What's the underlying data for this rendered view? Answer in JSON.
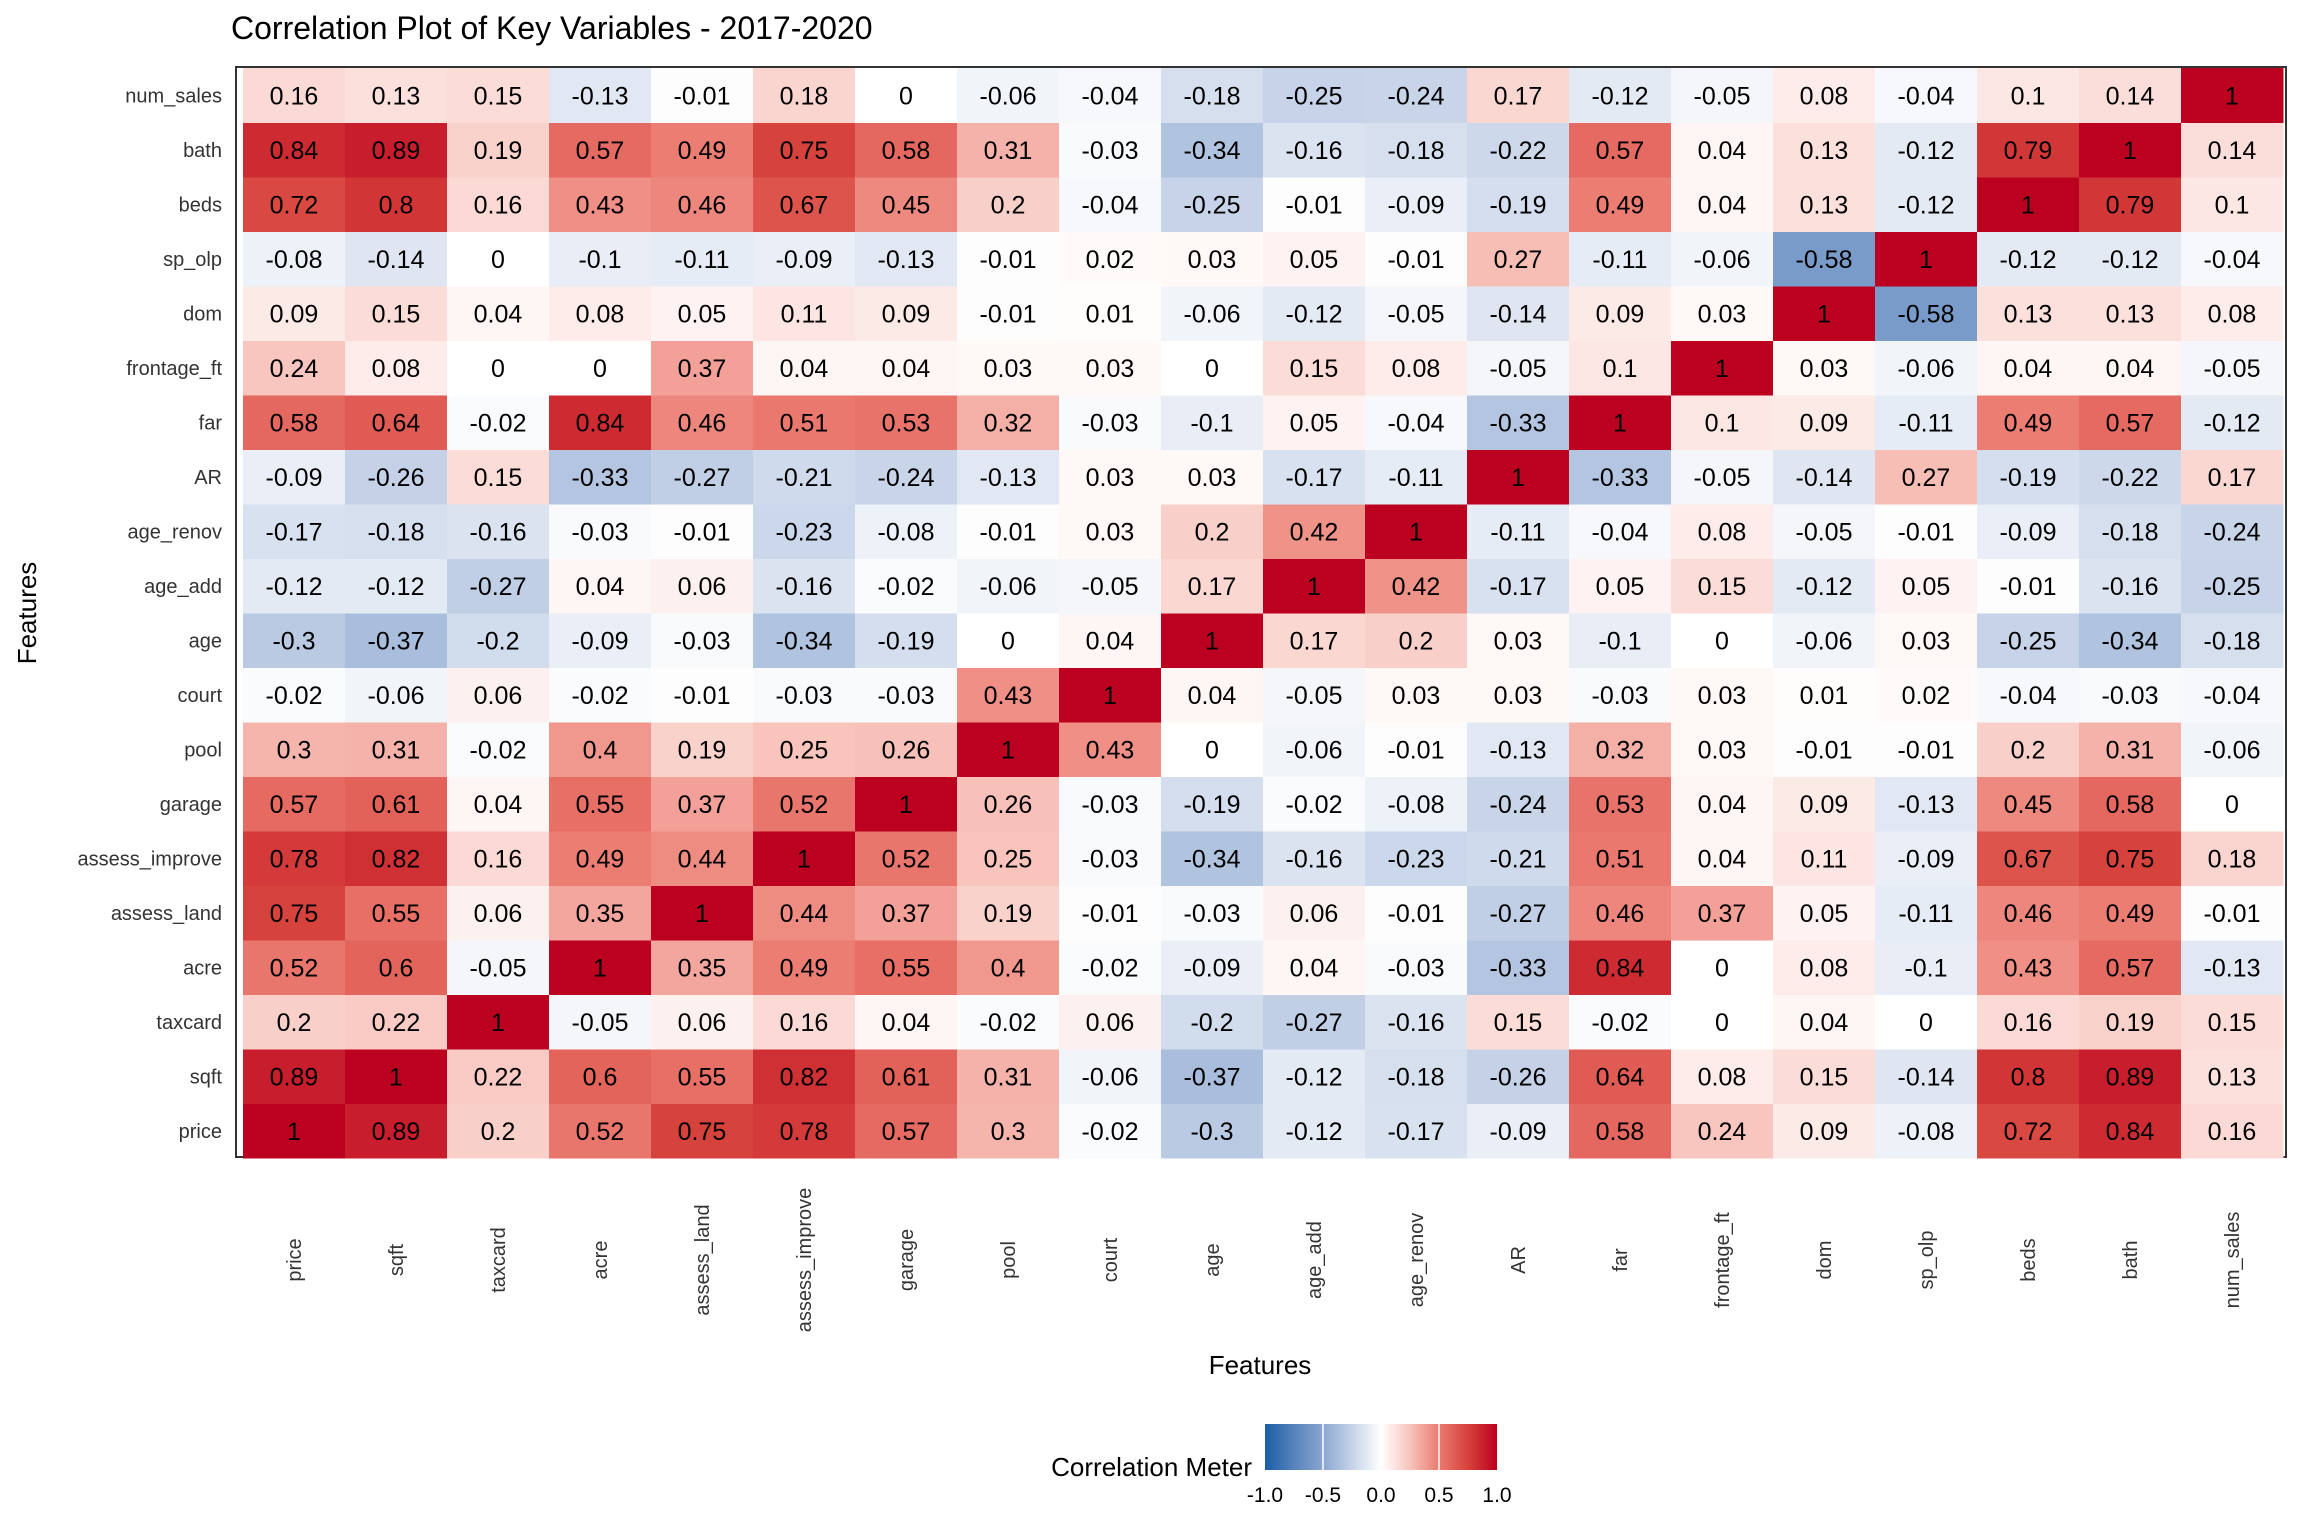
{
  "chart_data": {
    "type": "heatmap",
    "title": "Correlation Plot of Key Variables - 2017-2020",
    "xlabel": "Features",
    "ylabel": "Features",
    "variables": [
      "price",
      "sqft",
      "taxcard",
      "acre",
      "assess_land",
      "assess_improve",
      "garage",
      "pool",
      "court",
      "age",
      "age_add",
      "age_renov",
      "AR",
      "far",
      "frontage_ft",
      "dom",
      "sp_olp",
      "beds",
      "bath",
      "num_sales"
    ],
    "matrix": [
      [
        1,
        0.89,
        0.2,
        0.52,
        0.75,
        0.78,
        0.57,
        0.3,
        -0.02,
        -0.3,
        -0.12,
        -0.17,
        -0.09,
        0.58,
        0.24,
        0.09,
        -0.08,
        0.72,
        0.84,
        0.16
      ],
      [
        0.89,
        1,
        0.22,
        0.6,
        0.55,
        0.82,
        0.61,
        0.31,
        -0.06,
        -0.37,
        -0.12,
        -0.18,
        -0.26,
        0.64,
        0.08,
        0.15,
        -0.14,
        0.8,
        0.89,
        0.13
      ],
      [
        0.2,
        0.22,
        1,
        -0.05,
        0.06,
        0.16,
        0.04,
        -0.02,
        0.06,
        -0.2,
        -0.27,
        -0.16,
        0.15,
        -0.02,
        0,
        0.04,
        0,
        0.16,
        0.19,
        0.15
      ],
      [
        0.52,
        0.6,
        -0.05,
        1,
        0.35,
        0.49,
        0.55,
        0.4,
        -0.02,
        -0.09,
        0.04,
        -0.03,
        -0.33,
        0.84,
        0,
        0.08,
        -0.1,
        0.43,
        0.57,
        -0.13
      ],
      [
        0.75,
        0.55,
        0.06,
        0.35,
        1,
        0.44,
        0.37,
        0.19,
        -0.01,
        -0.03,
        0.06,
        -0.01,
        -0.27,
        0.46,
        0.37,
        0.05,
        -0.11,
        0.46,
        0.49,
        -0.01
      ],
      [
        0.78,
        0.82,
        0.16,
        0.49,
        0.44,
        1,
        0.52,
        0.25,
        -0.03,
        -0.34,
        -0.16,
        -0.23,
        -0.21,
        0.51,
        0.04,
        0.11,
        -0.09,
        0.67,
        0.75,
        0.18
      ],
      [
        0.57,
        0.61,
        0.04,
        0.55,
        0.37,
        0.52,
        1,
        0.26,
        -0.03,
        -0.19,
        -0.02,
        -0.08,
        -0.24,
        0.53,
        0.04,
        0.09,
        -0.13,
        0.45,
        0.58,
        0
      ],
      [
        0.3,
        0.31,
        -0.02,
        0.4,
        0.19,
        0.25,
        0.26,
        1,
        0.43,
        0,
        -0.06,
        -0.01,
        -0.13,
        0.32,
        0.03,
        -0.01,
        -0.01,
        0.2,
        0.31,
        -0.06
      ],
      [
        -0.02,
        -0.06,
        0.06,
        -0.02,
        -0.01,
        -0.03,
        -0.03,
        0.43,
        1,
        0.04,
        -0.05,
        0.03,
        0.03,
        -0.03,
        0.03,
        0.01,
        0.02,
        -0.04,
        -0.03,
        -0.04
      ],
      [
        -0.3,
        -0.37,
        -0.2,
        -0.09,
        -0.03,
        -0.34,
        -0.19,
        0,
        0.04,
        1,
        0.17,
        0.2,
        0.03,
        -0.1,
        0,
        -0.06,
        0.03,
        -0.25,
        -0.34,
        -0.18
      ],
      [
        -0.12,
        -0.12,
        -0.27,
        0.04,
        0.06,
        -0.16,
        -0.02,
        -0.06,
        -0.05,
        0.17,
        1,
        0.42,
        -0.17,
        0.05,
        0.15,
        -0.12,
        0.05,
        -0.01,
        -0.16,
        -0.25
      ],
      [
        -0.17,
        -0.18,
        -0.16,
        -0.03,
        -0.01,
        -0.23,
        -0.08,
        -0.01,
        0.03,
        0.2,
        0.42,
        1,
        -0.11,
        -0.04,
        0.08,
        -0.05,
        -0.01,
        -0.09,
        -0.18,
        -0.24
      ],
      [
        -0.09,
        -0.26,
        0.15,
        -0.33,
        -0.27,
        -0.21,
        -0.24,
        -0.13,
        0.03,
        0.03,
        -0.17,
        -0.11,
        1,
        -0.33,
        -0.05,
        -0.14,
        0.27,
        -0.19,
        -0.22,
        0.17
      ],
      [
        0.58,
        0.64,
        -0.02,
        0.84,
        0.46,
        0.51,
        0.53,
        0.32,
        -0.03,
        -0.1,
        0.05,
        -0.04,
        -0.33,
        1,
        0.1,
        0.09,
        -0.11,
        0.49,
        0.57,
        -0.12
      ],
      [
        0.24,
        0.08,
        0,
        0,
        0.37,
        0.04,
        0.04,
        0.03,
        0.03,
        0,
        0.15,
        0.08,
        -0.05,
        0.1,
        1,
        0.03,
        -0.06,
        0.04,
        0.04,
        -0.05
      ],
      [
        0.09,
        0.15,
        0.04,
        0.08,
        0.05,
        0.11,
        0.09,
        -0.01,
        0.01,
        -0.06,
        -0.12,
        -0.05,
        -0.14,
        0.09,
        0.03,
        1,
        -0.58,
        0.13,
        0.13,
        0.08
      ],
      [
        -0.08,
        -0.14,
        0,
        -0.1,
        -0.11,
        -0.09,
        -0.13,
        -0.01,
        0.02,
        0.03,
        0.05,
        -0.01,
        0.27,
        -0.11,
        -0.06,
        -0.58,
        1,
        -0.12,
        -0.12,
        -0.04
      ],
      [
        0.72,
        0.8,
        0.16,
        0.43,
        0.46,
        0.67,
        0.45,
        0.2,
        -0.04,
        -0.25,
        -0.01,
        -0.09,
        -0.19,
        0.49,
        0.04,
        0.13,
        -0.12,
        1,
        0.79,
        0.1
      ],
      [
        0.84,
        0.89,
        0.19,
        0.57,
        0.49,
        0.75,
        0.58,
        0.31,
        -0.03,
        -0.34,
        -0.16,
        -0.18,
        -0.22,
        0.57,
        0.04,
        0.13,
        -0.12,
        0.79,
        1,
        0.14
      ],
      [
        0.16,
        0.13,
        0.15,
        -0.13,
        -0.01,
        0.18,
        0,
        -0.06,
        -0.04,
        -0.18,
        -0.25,
        -0.24,
        0.17,
        -0.12,
        -0.05,
        0.08,
        -0.04,
        0.1,
        0.14,
        1
      ]
    ],
    "legend": {
      "title": "Correlation Meter",
      "position": "bottom",
      "range": [
        -1,
        1
      ],
      "ticks": [
        "-1.0",
        "-0.5",
        "0.0",
        "0.5",
        "1.0"
      ],
      "colors": {
        "low": "#1b5ea8",
        "mid": "#ffffff",
        "high": "#bc001f"
      }
    },
    "grid": true
  }
}
